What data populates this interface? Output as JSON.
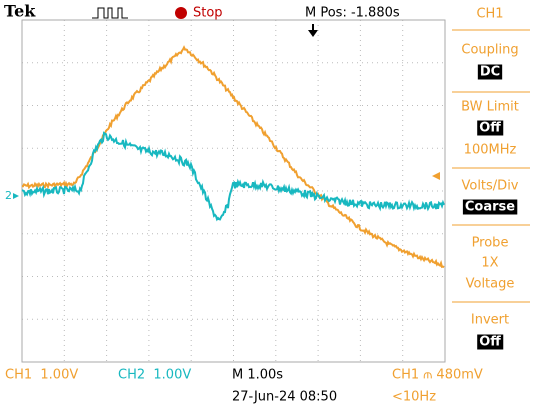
{
  "header": {
    "brand": "Tek",
    "status": "Stop",
    "position": "M Pos: -1.880s"
  },
  "menu": {
    "title": "CH1",
    "items": [
      {
        "label": "Coupling",
        "value": "DC"
      },
      {
        "label": "BW Limit",
        "value": "Off",
        "detail": "100MHz"
      },
      {
        "label": "Volts/Div",
        "value": "Coarse"
      },
      {
        "label": "Probe",
        "lines": [
          "1X",
          "Voltage"
        ]
      },
      {
        "label": "Invert",
        "value": "Off"
      }
    ]
  },
  "markers": {
    "ch2": "2"
  },
  "footer": {
    "ch1": "CH1  1.00V",
    "ch2": "CH2  1.00V",
    "timebase": "M 1.00s",
    "datetime": "27-Jun-24 08:50",
    "trigger": "CH1 ⫙ 480mV",
    "frequency": "<10Hz"
  }
}
